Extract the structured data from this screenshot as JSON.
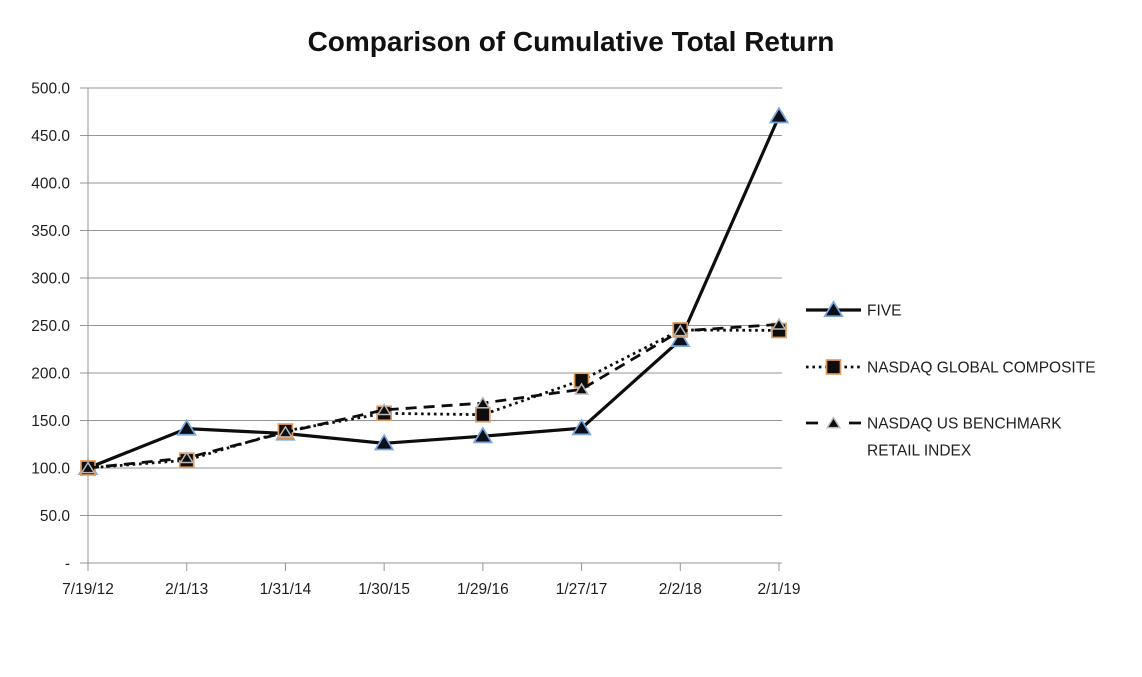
{
  "title": "Comparison of Cumulative Total Return",
  "chart_data": {
    "type": "line",
    "categories": [
      "7/19/12",
      "2/1/13",
      "1/31/14",
      "1/30/15",
      "1/29/16",
      "1/27/17",
      "2/2/18",
      "2/1/19"
    ],
    "series": [
      {
        "name": "FIVE",
        "values": [
          100.0,
          141.5,
          136.3,
          126.0,
          133.5,
          141.9,
          234.8,
          470.2
        ],
        "line_style": "solid",
        "marker": "triangle",
        "marker_fill": "#0b0f1a",
        "marker_edge": "#7ca7dc"
      },
      {
        "name": "NASDAQ GLOBAL COMPOSITE",
        "values": [
          100.0,
          108.2,
          138.9,
          157.6,
          156.1,
          192.4,
          245.3,
          244.8
        ],
        "line_style": "dotted",
        "marker": "square",
        "marker_fill": "#0d0d0d",
        "marker_edge": "#e29a5c"
      },
      {
        "name": "NASDAQ US BENCHMARK RETAIL INDEX",
        "values": [
          100.0,
          110.6,
          137.6,
          161.2,
          168.3,
          182.8,
          244.2,
          251.2
        ],
        "line_style": "dashed",
        "marker": "triangle-small",
        "marker_fill": "#0d0d0d",
        "marker_edge": "#b8b8b8",
        "legend_lines": [
          "NASDAQ US BENCHMARK",
          "RETAIL INDEX"
        ]
      }
    ],
    "xlabel": "",
    "ylabel": "",
    "ylim": [
      0,
      500
    ],
    "ytick_step": 50,
    "ytick_labels_top_to_bottom": [
      "500.0",
      "450.0",
      "400.0",
      "350.0",
      "300.0",
      "250.0",
      "200.0",
      "150.0",
      "100.0",
      "50.0",
      "-"
    ],
    "grid": true,
    "legend_position": "right",
    "colors": {
      "line": "#0d0d0d",
      "grid": "#969696",
      "text": "#1f1f1f",
      "background": "#ffffff"
    }
  }
}
